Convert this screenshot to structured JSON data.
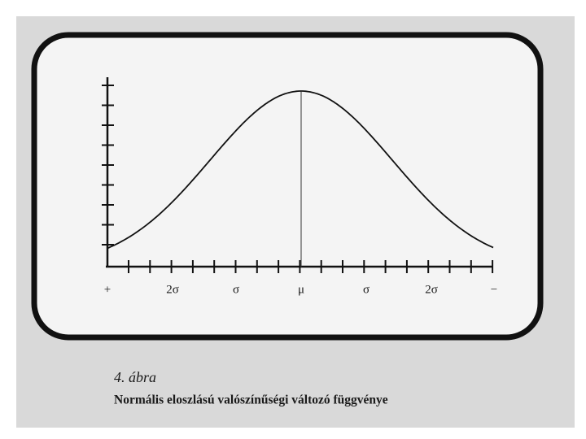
{
  "figure": {
    "axis_labels": [
      "+",
      "2σ",
      "σ",
      "μ",
      "σ",
      "2σ",
      "−"
    ],
    "caption_number": "4. ábra",
    "caption": "Normális eloszlású valószínűségi változó függvénye"
  }
}
